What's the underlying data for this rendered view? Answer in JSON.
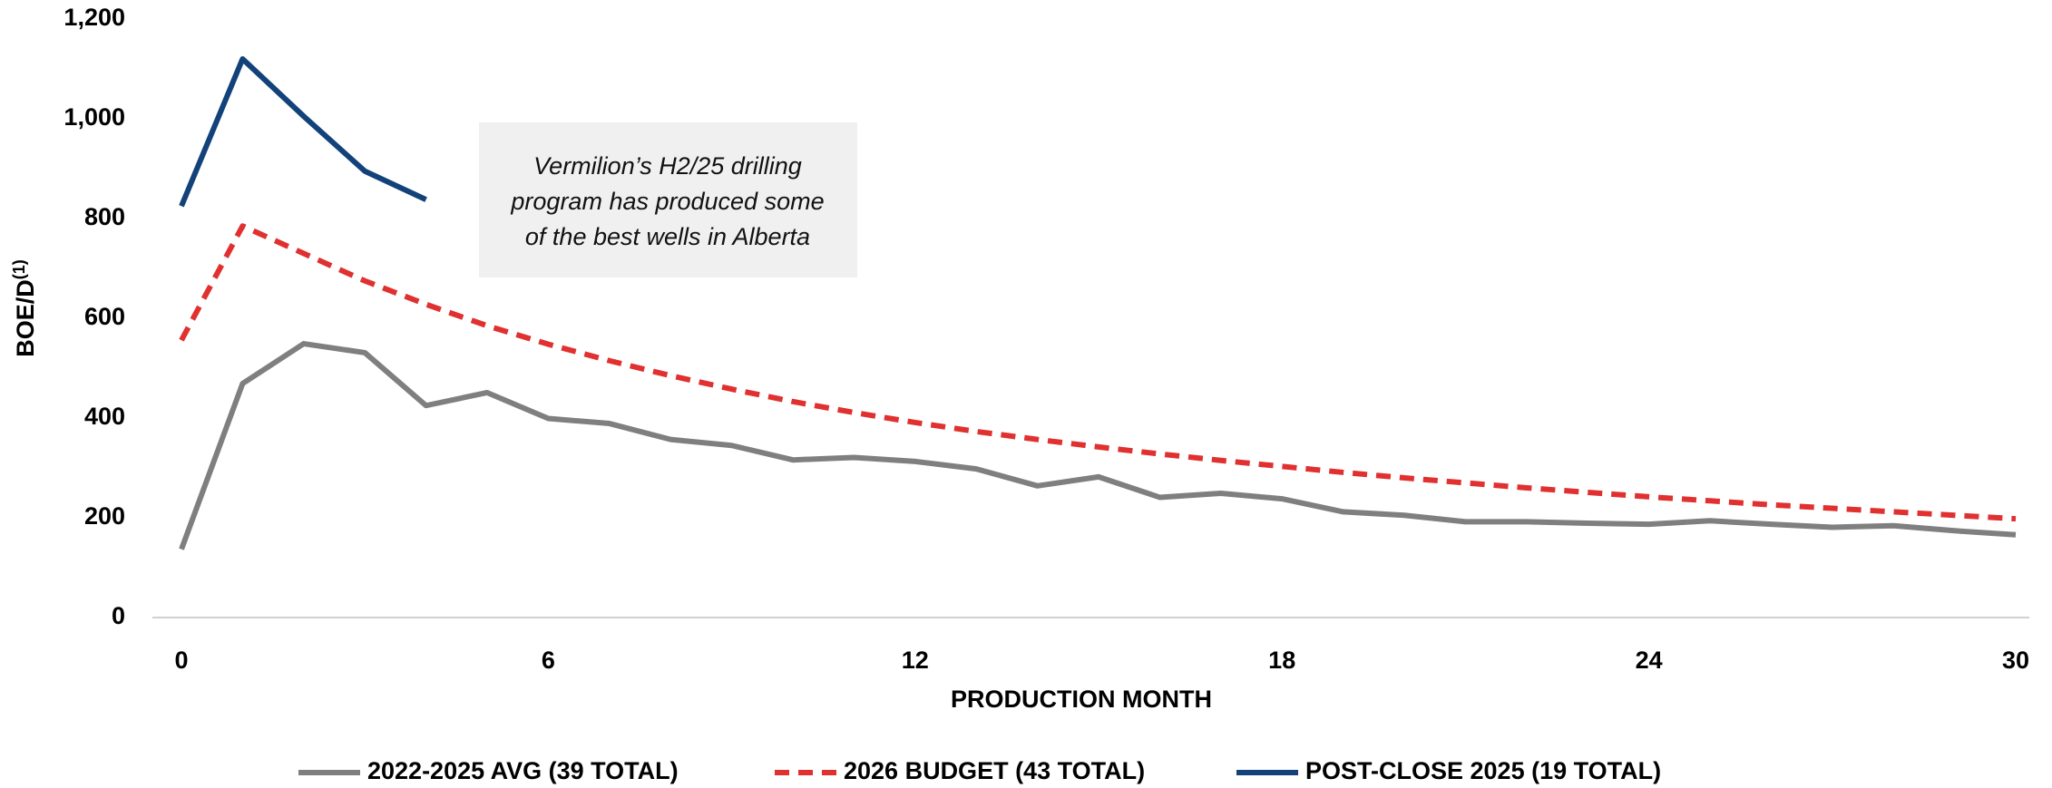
{
  "chart_data": {
    "type": "line",
    "xlabel": "PRODUCTION MONTH",
    "ylabel": "BOE/D",
    "ylabel_sup": "(1)",
    "annotation": [
      "Vermilion’s H2/25 drilling",
      "program has produced some",
      "of the best wells in Alberta"
    ],
    "x": [
      0,
      1,
      2,
      3,
      4,
      5,
      6,
      7,
      8,
      9,
      10,
      11,
      12,
      13,
      14,
      15,
      16,
      17,
      18,
      19,
      20,
      21,
      22,
      23,
      24,
      25,
      26,
      27,
      28,
      29,
      30
    ],
    "xlim": [
      0,
      30
    ],
    "xticks": [
      0,
      6,
      12,
      18,
      24,
      30
    ],
    "ylim": [
      0,
      1200
    ],
    "yticks": [
      0,
      200,
      400,
      600,
      800,
      {
        "value": 1000,
        "label": "1,000"
      },
      {
        "value": 1200,
        "label": "1,200"
      }
    ],
    "series": [
      {
        "name": "2022-2025 AVG (39 TOTAL)",
        "color": "#7f7f7f",
        "dash": false,
        "values": [
          137,
          469,
          549,
          531,
          425,
          451,
          399,
          389,
          357,
          345,
          316,
          321,
          313,
          298,
          264,
          282,
          241,
          249,
          238,
          212,
          205,
          192,
          192,
          189,
          187,
          194,
          187,
          181,
          184,
          174,
          166
        ]
      },
      {
        "name": "2026 BUDGET (43 TOTAL)",
        "color": "#e03030",
        "dash": true,
        "values": [
          556,
          785,
          730,
          675,
          628,
          585,
          548,
          515,
          485,
          458,
          433,
          411,
          391,
          373,
          357,
          342,
          328,
          315,
          303,
          291,
          280,
          270,
          260,
          251,
          242,
          234,
          226,
          219,
          212,
          205,
          198
        ]
      },
      {
        "name": "POST-CLOSE 2025 (19 TOTAL)",
        "color": "#13427a",
        "dash": false,
        "values": [
          825,
          1120,
          1005,
          895,
          838,
          null,
          null,
          null,
          null,
          null,
          null,
          null,
          null,
          null,
          null,
          null,
          null,
          null,
          null,
          null,
          null,
          null,
          null,
          null,
          null,
          null,
          null,
          null,
          null,
          null,
          null
        ]
      }
    ]
  }
}
